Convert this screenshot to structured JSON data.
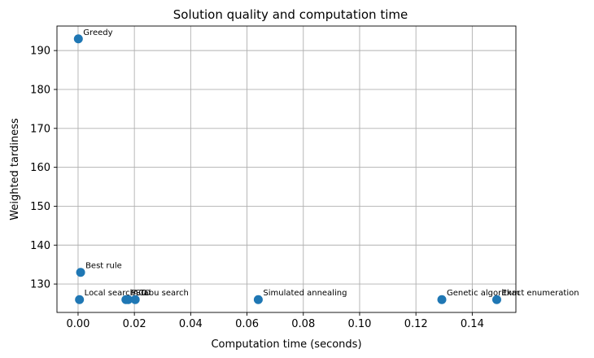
{
  "chart_data": {
    "type": "scatter",
    "title": "Solution quality and computation time",
    "xlabel": "Computation time (seconds)",
    "ylabel": "Weighted tardiness",
    "xlim": [
      -0.0075,
      0.1555
    ],
    "ylim": [
      122.7,
      196.3
    ],
    "xticks": [
      0.0,
      0.02,
      0.04,
      0.06,
      0.08,
      0.1,
      0.12,
      0.14
    ],
    "xtick_labels": [
      "0.00",
      "0.02",
      "0.04",
      "0.06",
      "0.08",
      "0.10",
      "0.12",
      "0.14"
    ],
    "yticks": [
      130,
      140,
      150,
      160,
      170,
      180,
      190
    ],
    "ytick_labels": [
      "130",
      "140",
      "150",
      "160",
      "170",
      "180",
      "190"
    ],
    "grid": true,
    "marker_color": "#1f77b4",
    "points": [
      {
        "label": "Greedy",
        "x": 0.0001,
        "y": 193
      },
      {
        "label": "Best rule",
        "x": 0.0009,
        "y": 133
      },
      {
        "label": "Local search",
        "x": 0.0005,
        "y": 126
      },
      {
        "label": "PSO",
        "x": 0.017,
        "y": 126
      },
      {
        "label": "ACO",
        "x": 0.0178,
        "y": 126
      },
      {
        "label": "Tabu search",
        "x": 0.0203,
        "y": 126
      },
      {
        "label": "Simulated annealing",
        "x": 0.064,
        "y": 126
      },
      {
        "label": "Genetic algorithm",
        "x": 0.1292,
        "y": 126
      },
      {
        "label": "Exact enumeration",
        "x": 0.1487,
        "y": 126
      }
    ]
  }
}
